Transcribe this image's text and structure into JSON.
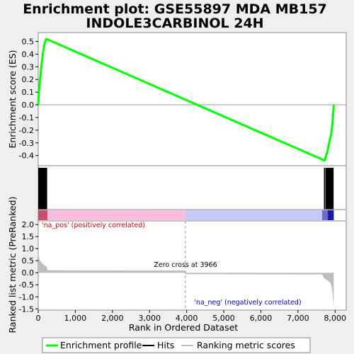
{
  "chart_data": [
    {
      "panel": "enrichment-score",
      "type": "line",
      "title_line1": "Enrichment plot: GSE55897 MDA MB157",
      "title_line2": "INDOLE3CARBINOL 24H",
      "ylabel": "Enrichment score (ES)",
      "xlim": [
        0,
        8300
      ],
      "ylim": [
        -0.48,
        0.57
      ],
      "yticks": [
        "0.5",
        "0.4",
        "0.3",
        "0.2",
        "0.1",
        "0.0",
        "-0.1",
        "-0.2",
        "-0.3",
        "-0.4"
      ],
      "ytick_values": [
        0.5,
        0.4,
        0.3,
        0.2,
        0.1,
        0.0,
        -0.1,
        -0.2,
        -0.3,
        -0.4
      ],
      "color": "#00ff00",
      "series": [
        {
          "x": [
            0,
            10,
            20,
            35,
            50,
            65,
            80,
            100,
            120,
            140,
            160,
            180,
            200,
            220,
            7720,
            7740,
            7760,
            7790,
            7820,
            7850,
            7870,
            7890,
            7910,
            7925,
            7935,
            7945,
            7955,
            7965
          ],
          "values": [
            0.0,
            0.05,
            0.1,
            0.15,
            0.2,
            0.24,
            0.29,
            0.34,
            0.39,
            0.43,
            0.46,
            0.49,
            0.51,
            0.52,
            -0.44,
            -0.42,
            -0.4,
            -0.37,
            -0.33,
            -0.29,
            -0.26,
            -0.24,
            -0.2,
            -0.16,
            -0.12,
            -0.08,
            -0.04,
            0.0
          ]
        }
      ]
    },
    {
      "panel": "hits",
      "type": "bar",
      "hit_ranges": [
        [
          0,
          240
        ],
        [
          7700,
          7730
        ],
        [
          7740,
          7960
        ]
      ],
      "color": "#000000"
    },
    {
      "panel": "rank-colorbar",
      "type": "heatmap",
      "segments": [
        {
          "from": 0,
          "to": 250,
          "color": "#c8506e"
        },
        {
          "from": 250,
          "to": 3966,
          "color": "#f8bde0"
        },
        {
          "from": 3966,
          "to": 7650,
          "color": "#c9c9f5"
        },
        {
          "from": 7650,
          "to": 7800,
          "color": "#6b6bd8"
        },
        {
          "from": 7800,
          "to": 7965,
          "color": "#1a1a9a"
        }
      ]
    },
    {
      "panel": "ranked-metric",
      "type": "area",
      "ylabel": "Ranked list metric (PreRanked)",
      "xlabel": "Rank in Ordered Dataset",
      "ylim": [
        -1.55,
        2.15
      ],
      "yticks": [
        "2.0",
        "1.5",
        "1.0",
        "0.5",
        "0.0",
        "-0.5",
        "-1.0",
        "-1.5"
      ],
      "ytick_values": [
        2.0,
        1.5,
        1.0,
        0.5,
        0.0,
        -0.5,
        -1.0,
        -1.5
      ],
      "xticks": [
        "0",
        "1,000",
        "2,000",
        "3,000",
        "4,000",
        "5,000",
        "6,000",
        "7,000",
        "8,000"
      ],
      "xtick_values": [
        0,
        1000,
        2000,
        3000,
        4000,
        5000,
        6000,
        7000,
        8000
      ],
      "color": "#bebebe",
      "series": [
        {
          "x": [
            0,
            5,
            20,
            50,
            100,
            150,
            200,
            230,
            250,
            3966,
            3967,
            7650,
            7700,
            7750,
            7800,
            7850,
            7880,
            7900,
            7920,
            7940,
            7955,
            7965
          ],
          "values": [
            2.1,
            0.9,
            0.65,
            0.5,
            0.4,
            0.33,
            0.28,
            0.25,
            0.1,
            0.09,
            -0.06,
            -0.07,
            -0.22,
            -0.28,
            -0.32,
            -0.38,
            -0.45,
            -0.55,
            -0.7,
            -0.95,
            -1.25,
            -1.45
          ]
        }
      ],
      "zero_cross_rank": 3966,
      "annotations": {
        "pos": "'na_pos' (positively correlated)",
        "neg": "'na_neg' (negatively correlated)",
        "zero": "Zero cross at 3966"
      },
      "pos_color": "#cc0000",
      "neg_color": "#0000cc"
    }
  ],
  "legend": {
    "items": [
      {
        "label": "Enrichment profile",
        "color": "#00ff00"
      },
      {
        "label": "Hits",
        "color": "#000000"
      },
      {
        "label": "Ranking metric scores",
        "color": "#bebebe"
      }
    ]
  }
}
